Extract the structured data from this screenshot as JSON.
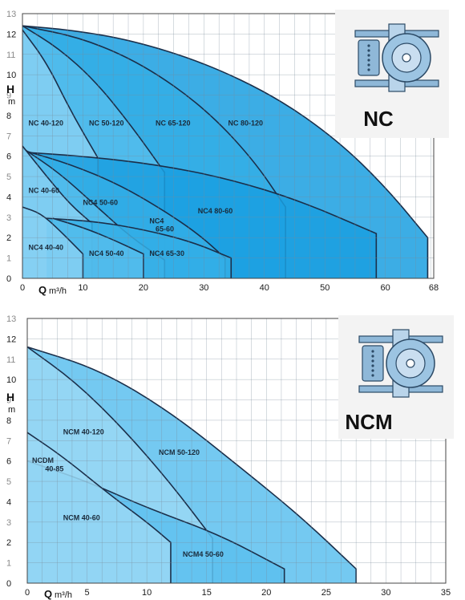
{
  "chart_data": [
    {
      "type": "area",
      "model_label": "NC",
      "title": "",
      "ylabel": "H",
      "yunit": "m",
      "xlabel": "Q",
      "xunit": "m³/h",
      "xlim": [
        0,
        68
      ],
      "ylim": [
        0,
        13
      ],
      "x_ticks": [
        "0",
        "10",
        "20",
        "30",
        "40",
        "50",
        "60",
        "68"
      ],
      "y_ticks": [
        "0",
        "1",
        "2",
        "3",
        "4",
        "5",
        "6",
        "7",
        "8",
        "9",
        "10",
        "11",
        "12",
        "13"
      ],
      "y_ticks_major": [
        "0",
        "2",
        "4",
        "6",
        "8",
        "10",
        "12"
      ],
      "grid": true,
      "series": [
        {
          "name": "NC 80-120",
          "color": "#1a9fe0",
          "points": [
            [
              0,
              12.4
            ],
            [
              8,
              12.2
            ],
            [
              18,
              11.7
            ],
            [
              30,
              10.6
            ],
            [
              42,
              8.9
            ],
            [
              52,
              6.8
            ],
            [
              60,
              4.5
            ],
            [
              67,
              2
            ]
          ],
          "end_x": 67
        },
        {
          "name": "NC 65-120",
          "color": "#33aee6",
          "points": [
            [
              0,
              12.4
            ],
            [
              10,
              11.8
            ],
            [
              20,
              10.5
            ],
            [
              30,
              8.4
            ],
            [
              38,
              5.9
            ],
            [
              43.5,
              3.5
            ]
          ],
          "end_x": 43.5
        },
        {
          "name": "NC 50-120",
          "color": "#55bdec",
          "points": [
            [
              0,
              12.4
            ],
            [
              6,
              11.3
            ],
            [
              12,
              9.7
            ],
            [
              18,
              7.5
            ],
            [
              23.5,
              5.2
            ]
          ],
          "end_x": 23.5
        },
        {
          "name": "NC 40-120",
          "color": "#86d0f3",
          "points": [
            [
              0,
              12.2
            ],
            [
              4,
              10.6
            ],
            [
              8,
              8.2
            ],
            [
              12.5,
              5.9
            ]
          ],
          "end_x": 12.5
        },
        {
          "name": "NC4 80-60",
          "color": "#1a9fe0",
          "points": [
            [
              0,
              6.2
            ],
            [
              10,
              6.0
            ],
            [
              22,
              5.6
            ],
            [
              34,
              4.9
            ],
            [
              46,
              3.8
            ],
            [
              58.5,
              2.2
            ]
          ],
          "end_x": 58.5
        },
        {
          "name": "NC4 65-60",
          "color": "#33aee6",
          "points": [
            [
              0,
              6.3
            ],
            [
              8,
              5.6
            ],
            [
              16,
              4.6
            ],
            [
              23,
              3.4
            ],
            [
              29,
              2.2
            ],
            [
              33.5,
              1
            ]
          ],
          "end_x": 33.5
        },
        {
          "name": "NC4 50-60",
          "color": "#55bdec",
          "points": [
            [
              0,
              6.4
            ],
            [
              6,
              5.2
            ],
            [
              12,
              3.6
            ],
            [
              18,
              2.0
            ],
            [
              23.5,
              0.9
            ]
          ],
          "end_x": 23.5
        },
        {
          "name": "NC 40-60",
          "color": "#86d0f3",
          "points": [
            [
              0,
              6.5
            ],
            [
              4,
              5.0
            ],
            [
              8,
              3.6
            ],
            [
              11.5,
              2.7
            ]
          ],
          "end_x": 11.5
        },
        {
          "name": "NC4 65-30",
          "color": "#33aee6",
          "points": [
            [
              4,
              2.95
            ],
            [
              12,
              2.8
            ],
            [
              20,
              2.4
            ],
            [
              28,
              1.8
            ],
            [
              34.5,
              1
            ]
          ],
          "end_x": 34.5
        },
        {
          "name": "NC4 50-40",
          "color": "#55bdec",
          "points": [
            [
              5,
              2.95
            ],
            [
              10,
              2.5
            ],
            [
              15,
              1.9
            ],
            [
              20,
              1.2
            ]
          ],
          "end_x": 20
        },
        {
          "name": "NC4 40-40",
          "color": "#86d0f3",
          "points": [
            [
              0,
              3.5
            ],
            [
              3,
              3.2
            ],
            [
              6,
              2.4
            ],
            [
              10,
              1.2
            ]
          ],
          "end_x": 10
        }
      ],
      "curve_labels": [
        {
          "text": "NC 40-120",
          "x": 1,
          "y": 7.5
        },
        {
          "text": "NC 50-120",
          "x": 11,
          "y": 7.5
        },
        {
          "text": "NC 65-120",
          "x": 22,
          "y": 7.5
        },
        {
          "text": "NC 80-120",
          "x": 34,
          "y": 7.5
        },
        {
          "text": "NC 40-60",
          "x": 1,
          "y": 4.2
        },
        {
          "text": "NC4 50-60",
          "x": 10,
          "y": 3.6
        },
        {
          "text": "NC4",
          "x": 21,
          "y": 2.7
        },
        {
          "text": "65-60",
          "x": 22,
          "y": 2.3
        },
        {
          "text": "NC4 80-60",
          "x": 29,
          "y": 3.2
        },
        {
          "text": "NC4 40-40",
          "x": 1,
          "y": 1.4
        },
        {
          "text": "NC4 50-40",
          "x": 11,
          "y": 1.1
        },
        {
          "text": "NC4 65-30",
          "x": 21,
          "y": 1.1
        }
      ]
    },
    {
      "type": "area",
      "model_label": "NCM",
      "title": "",
      "ylabel": "H",
      "yunit": "m",
      "xlabel": "Q",
      "xunit": "m³/h",
      "xlim": [
        0,
        35
      ],
      "ylim": [
        0,
        13
      ],
      "x_ticks": [
        "0",
        "5",
        "10",
        "15",
        "20",
        "25",
        "30",
        "35"
      ],
      "y_ticks": [
        "0",
        "1",
        "2",
        "3",
        "4",
        "5",
        "6",
        "7",
        "8",
        "9",
        "10",
        "11",
        "12",
        "13"
      ],
      "y_ticks_major": [
        "0",
        "2",
        "4",
        "6",
        "8",
        "10",
        "12"
      ],
      "grid": true,
      "series": [
        {
          "name": "NCM 50-120",
          "color": "#5cc0ee",
          "points": [
            [
              0,
              11.6
            ],
            [
              6,
              10.5
            ],
            [
              12,
              8.4
            ],
            [
              18,
              5.6
            ],
            [
              23,
              3.2
            ],
            [
              27.5,
              0.7
            ]
          ],
          "end_x": 27.5
        },
        {
          "name": "NCM 40-120",
          "color": "#9ad8f5",
          "points": [
            [
              0,
              11.6
            ],
            [
              4,
              9.9
            ],
            [
              8,
              7.6
            ],
            [
              12,
              4.9
            ],
            [
              15.5,
              2.2
            ]
          ],
          "end_x": 15.5
        },
        {
          "name": "NCM4 50-60",
          "color": "#5cc0ee",
          "points": [
            [
              0,
              6.0
            ],
            [
              5,
              5.0
            ],
            [
              10,
              3.7
            ],
            [
              16,
              2.4
            ],
            [
              21.5,
              0.7
            ]
          ],
          "end_x": 21.5
        },
        {
          "name": "NCM 40-60",
          "color": "#9ad8f5",
          "points": [
            [
              0,
              7.4
            ],
            [
              3,
              6.2
            ],
            [
              7,
              4.3
            ],
            [
              10,
              3.0
            ],
            [
              12,
              2.0
            ]
          ],
          "end_x": 12
        }
      ],
      "curve_labels": [
        {
          "text": "NCM 40-120",
          "x": 3,
          "y": 7.3
        },
        {
          "text": "NCM 50-120",
          "x": 11,
          "y": 6.3
        },
        {
          "text": "NCDM",
          "x": 0.4,
          "y": 5.9
        },
        {
          "text": "40-85",
          "x": 1.5,
          "y": 5.5
        },
        {
          "text": "NCM 40-60",
          "x": 3,
          "y": 3.1
        },
        {
          "text": "NCM4 50-60",
          "x": 13,
          "y": 1.3
        }
      ]
    }
  ]
}
